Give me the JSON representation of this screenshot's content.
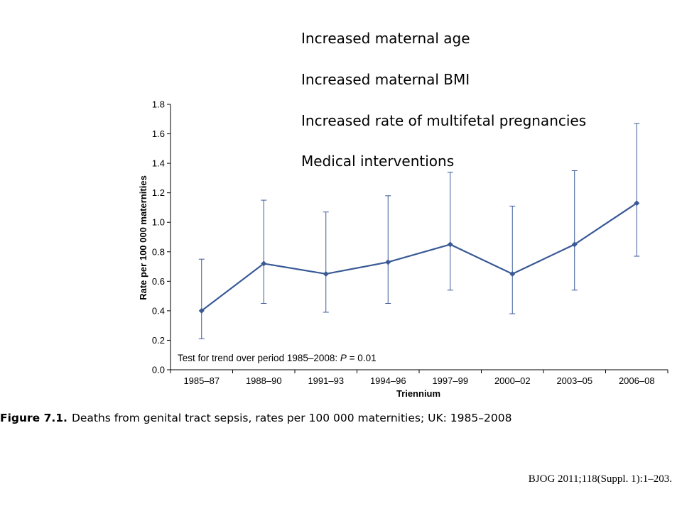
{
  "bullets": [
    "Increased maternal age",
    "Increased maternal BMI",
    "Increased rate of multifetal pregnancies",
    "Medical interventions"
  ],
  "caption": {
    "label": "Figure 7.1.",
    "text": "Deaths  from genital tract sepsis, rates per 100 000 maternities; UK: 1985–2008"
  },
  "citation": "BJOG 2011;118(Suppl. 1):1–203.",
  "colors": {
    "series": "#3a5a96",
    "axis": "#000000"
  },
  "chart_data": {
    "type": "line",
    "xlabel": "Triennium",
    "ylabel": "Rate per 100 000 maternities",
    "categories": [
      "1985–87",
      "1988–90",
      "1991–93",
      "1994–96",
      "1997–99",
      "2000–02",
      "2003–05",
      "2006–08"
    ],
    "values": [
      0.4,
      0.72,
      0.65,
      0.73,
      0.85,
      0.65,
      0.85,
      1.13
    ],
    "error_low": [
      0.21,
      0.45,
      0.39,
      0.45,
      0.54,
      0.38,
      0.54,
      0.77
    ],
    "error_high": [
      0.75,
      1.15,
      1.07,
      1.18,
      1.34,
      1.11,
      1.35,
      1.67
    ],
    "ylim": [
      0,
      1.8
    ],
    "yticks": [
      "0.0",
      "0.2",
      "0.4",
      "0.6",
      "0.8",
      "1.0",
      "1.2",
      "1.4",
      "1.6",
      "1.8"
    ],
    "grid": false,
    "annotation": {
      "prefix": "Test for trend over period 1985–2008: ",
      "p": "P",
      "suffix": " = 0.01"
    }
  }
}
